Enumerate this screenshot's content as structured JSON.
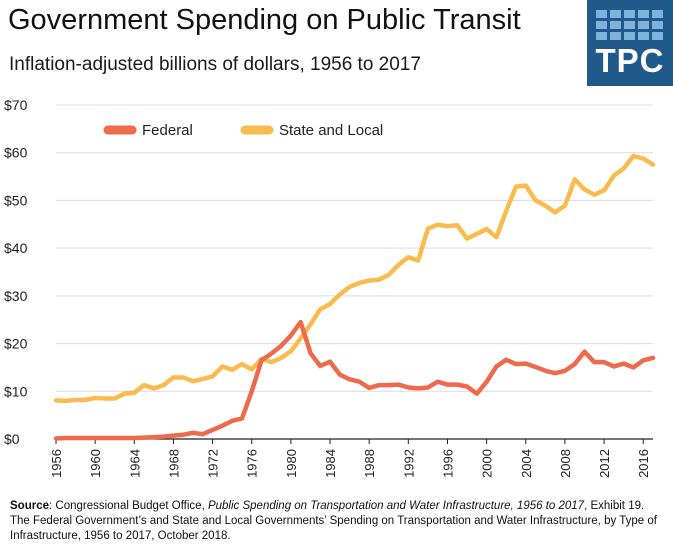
{
  "header": {
    "title": "Government Spending on Public Transit",
    "subtitle": "Inflation-adjusted billions of dollars, 1956 to 2017",
    "logo_text": "TPC"
  },
  "colors": {
    "federal": "#ee6a4c",
    "state_local": "#f9bb4e",
    "logo_bg": "#1f5a8a",
    "logo_tiles": "#7fb3dc",
    "gridline": "#dcdcdc"
  },
  "chart_data": {
    "type": "line",
    "title": "Government Spending on Public Transit",
    "subtitle": "Inflation-adjusted billions of dollars, 1956 to 2017",
    "xlabel": "",
    "ylabel": "",
    "xlim": [
      1956,
      2017
    ],
    "ylim": [
      0,
      70
    ],
    "y_ticks": [
      0,
      10,
      20,
      30,
      40,
      50,
      60,
      70
    ],
    "y_tick_labels": [
      "$0",
      "$10",
      "$20",
      "$30",
      "$40",
      "$50",
      "$60",
      "$70"
    ],
    "x_ticks": [
      1956,
      1960,
      1964,
      1968,
      1972,
      1976,
      1980,
      1984,
      1988,
      1992,
      1996,
      2000,
      2004,
      2008,
      2012,
      2016
    ],
    "legend_position": "top-left",
    "grid": true,
    "x": [
      1956,
      1957,
      1958,
      1959,
      1960,
      1961,
      1962,
      1963,
      1964,
      1965,
      1966,
      1967,
      1968,
      1969,
      1970,
      1971,
      1972,
      1973,
      1974,
      1975,
      1976,
      1977,
      1978,
      1979,
      1980,
      1981,
      1982,
      1983,
      1984,
      1985,
      1986,
      1987,
      1988,
      1989,
      1990,
      1991,
      1992,
      1993,
      1994,
      1995,
      1996,
      1997,
      1998,
      1999,
      2000,
      2001,
      2002,
      2003,
      2004,
      2005,
      2006,
      2007,
      2008,
      2009,
      2010,
      2011,
      2012,
      2013,
      2014,
      2015,
      2016,
      2017
    ],
    "series": [
      {
        "name": "Federal",
        "values": [
          0.1,
          0.2,
          0.2,
          0.2,
          0.2,
          0.2,
          0.2,
          0.2,
          0.2,
          0.3,
          0.4,
          0.5,
          0.7,
          0.9,
          1.3,
          1.0,
          1.9,
          2.8,
          3.8,
          4.3,
          10.0,
          16.5,
          17.9,
          19.5,
          21.7,
          24.5,
          18.0,
          15.3,
          16.2,
          13.5,
          12.5,
          12.0,
          10.7,
          11.3,
          11.3,
          11.4,
          10.8,
          10.6,
          10.8,
          12.0,
          11.4,
          11.4,
          11.0,
          9.5,
          12.0,
          15.2,
          16.6,
          15.7,
          15.8,
          15.1,
          14.3,
          13.8,
          14.3,
          15.7,
          18.3,
          16.1,
          16.1,
          15.2,
          15.8,
          15.0,
          16.5,
          17.0
        ]
      },
      {
        "name": "State and Local",
        "values": [
          8.1,
          8.0,
          8.2,
          8.2,
          8.6,
          8.5,
          8.5,
          9.5,
          9.7,
          11.3,
          10.6,
          11.3,
          12.9,
          12.9,
          12.1,
          12.6,
          13.1,
          15.2,
          14.5,
          15.7,
          14.6,
          16.8,
          16.1,
          17.0,
          18.4,
          21.1,
          24.0,
          27.2,
          28.3,
          30.3,
          31.9,
          32.7,
          33.2,
          33.4,
          34.4,
          36.5,
          38.1,
          37.4,
          44.1,
          44.9,
          44.6,
          44.8,
          42.0,
          43.0,
          44.0,
          42.3,
          47.8,
          52.9,
          53.1,
          50.0,
          48.9,
          47.5,
          48.9,
          54.4,
          52.3,
          51.2,
          52.1,
          55.2,
          56.7,
          59.3,
          58.8,
          57.5
        ]
      }
    ]
  },
  "source": {
    "label": "Source",
    "text_before": ": Congressional Budget Office, ",
    "publication": "Public Spending on Transportation and Water Infrastructure, 1956 to 2017",
    "text_after": ", Exhibit 19. The Federal Government’s and State and Local Governments’ Spending on Transportation and Water Infrastructure, by Type of Infrastructure, 1956 to 2017, October 2018."
  }
}
